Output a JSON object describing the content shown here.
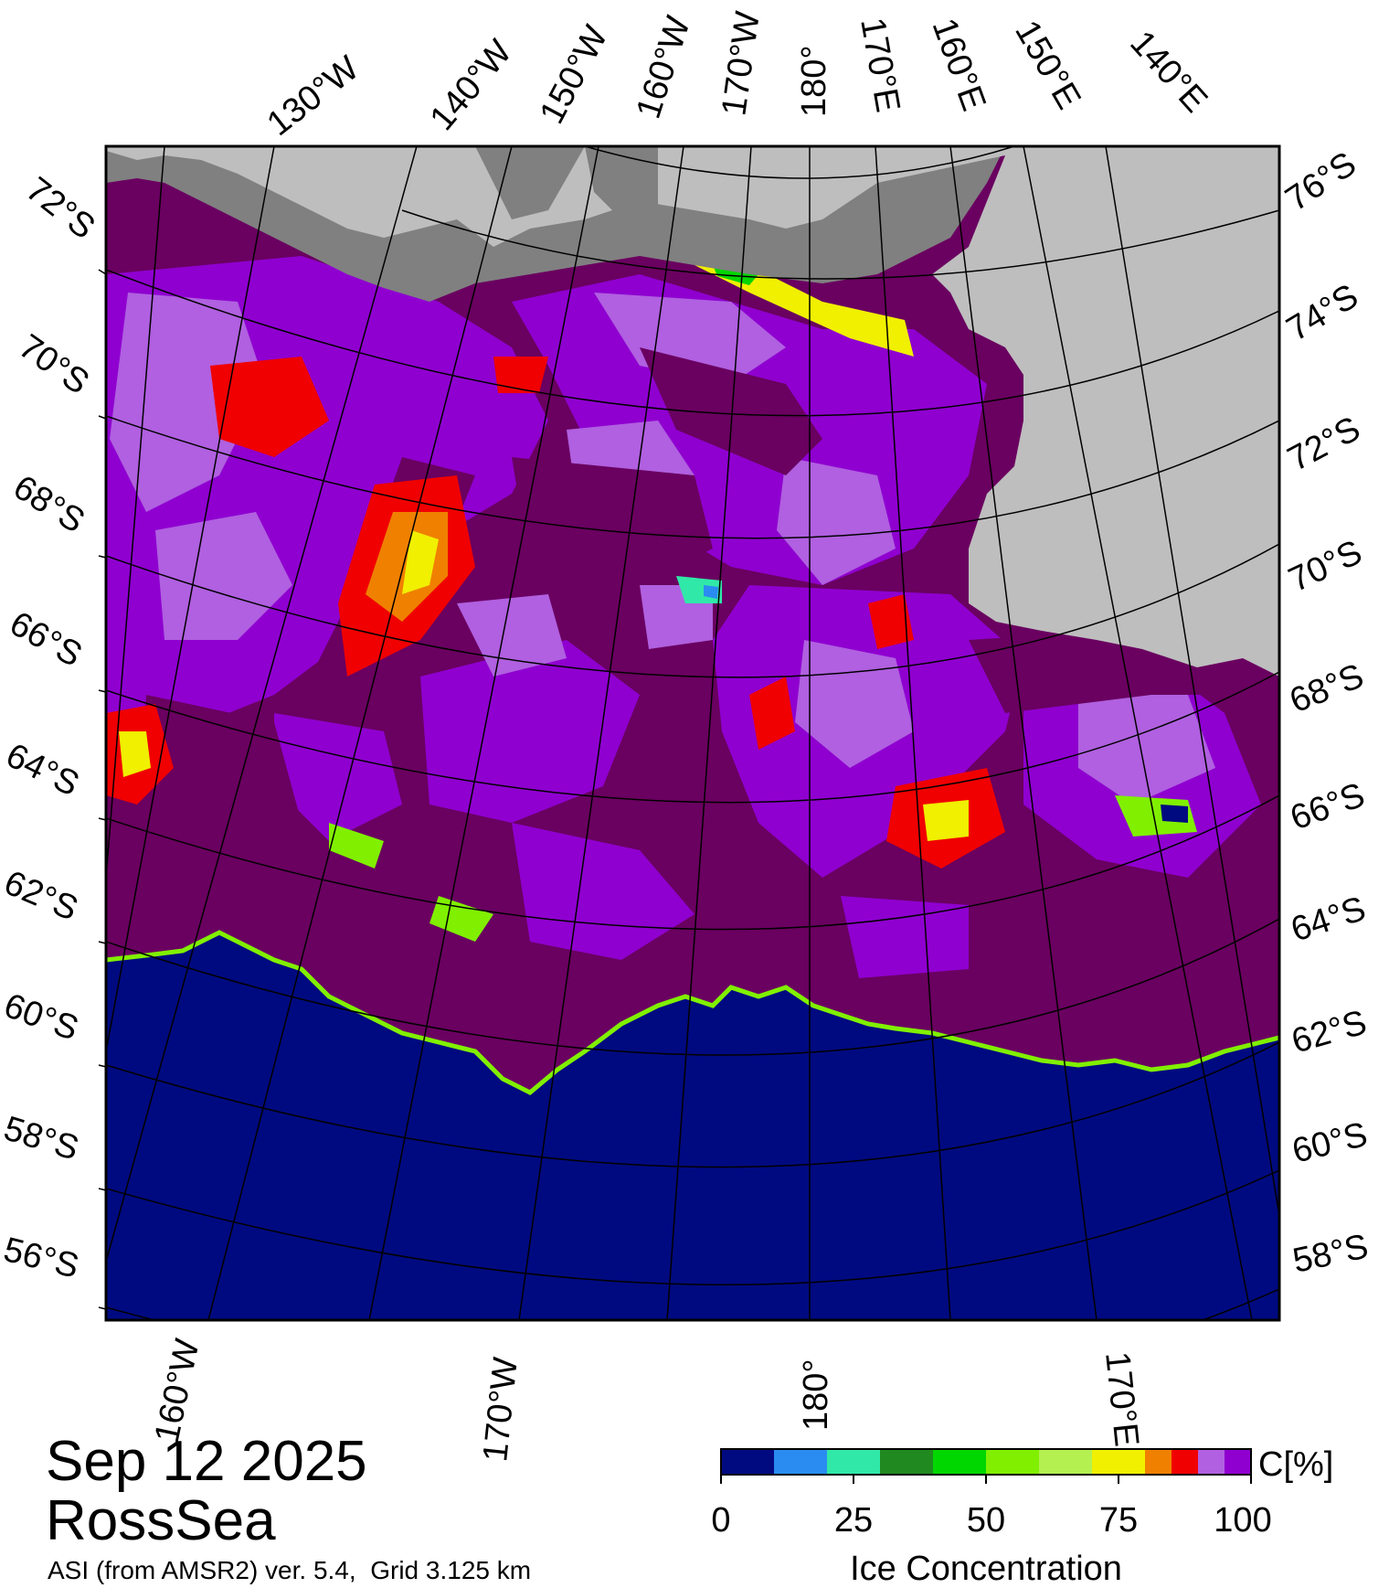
{
  "date": "Sep 12 2025",
  "region": "RossSea",
  "source": "ASI (from AMSR2) ver. 5.4,  Grid 3.125 km",
  "graticule": {
    "top_lon_labels": [
      "130°W",
      "140°W",
      "150°W",
      "160°W",
      "170°W",
      "180°",
      "170°E",
      "160°E",
      "150°E",
      "140°E"
    ],
    "bottom_lon_labels": [
      "160°W",
      "170°W",
      "180°",
      "170°E"
    ],
    "left_lat_labels": [
      "72°S",
      "70°S",
      "68°S",
      "66°S",
      "64°S",
      "62°S",
      "60°S",
      "58°S",
      "56°S"
    ],
    "right_lat_labels": [
      "76°S",
      "74°S",
      "72°S",
      "70°S",
      "68°S",
      "66°S",
      "64°S",
      "62°S",
      "60°S",
      "58°S"
    ]
  },
  "colors": {
    "open_water": "#000a80",
    "high_ice": "#6a0060",
    "ice_95": "#8f00d0",
    "ice_90": "#b060e0",
    "land": "#bebebe",
    "ice_shelf": "#808080"
  },
  "colorbar": {
    "title": "Ice Concentration",
    "unit": "C[%]",
    "ticks": [
      "0",
      "25",
      "50",
      "75",
      "100"
    ],
    "classes": [
      {
        "from": 0,
        "to": 10,
        "color": "#000a80"
      },
      {
        "from": 10,
        "to": 20,
        "color": "#2a8cf0"
      },
      {
        "from": 20,
        "to": 30,
        "color": "#30e8a8"
      },
      {
        "from": 30,
        "to": 40,
        "color": "#208a20"
      },
      {
        "from": 40,
        "to": 50,
        "color": "#00d600"
      },
      {
        "from": 50,
        "to": 60,
        "color": "#80f000"
      },
      {
        "from": 60,
        "to": 70,
        "color": "#b4f050"
      },
      {
        "from": 70,
        "to": 80,
        "color": "#f0f000"
      },
      {
        "from": 80,
        "to": 85,
        "color": "#f08000"
      },
      {
        "from": 85,
        "to": 90,
        "color": "#f00000"
      },
      {
        "from": 90,
        "to": 95,
        "color": "#b060e0"
      },
      {
        "from": 95,
        "to": 100,
        "color": "#8f00d0"
      }
    ]
  }
}
